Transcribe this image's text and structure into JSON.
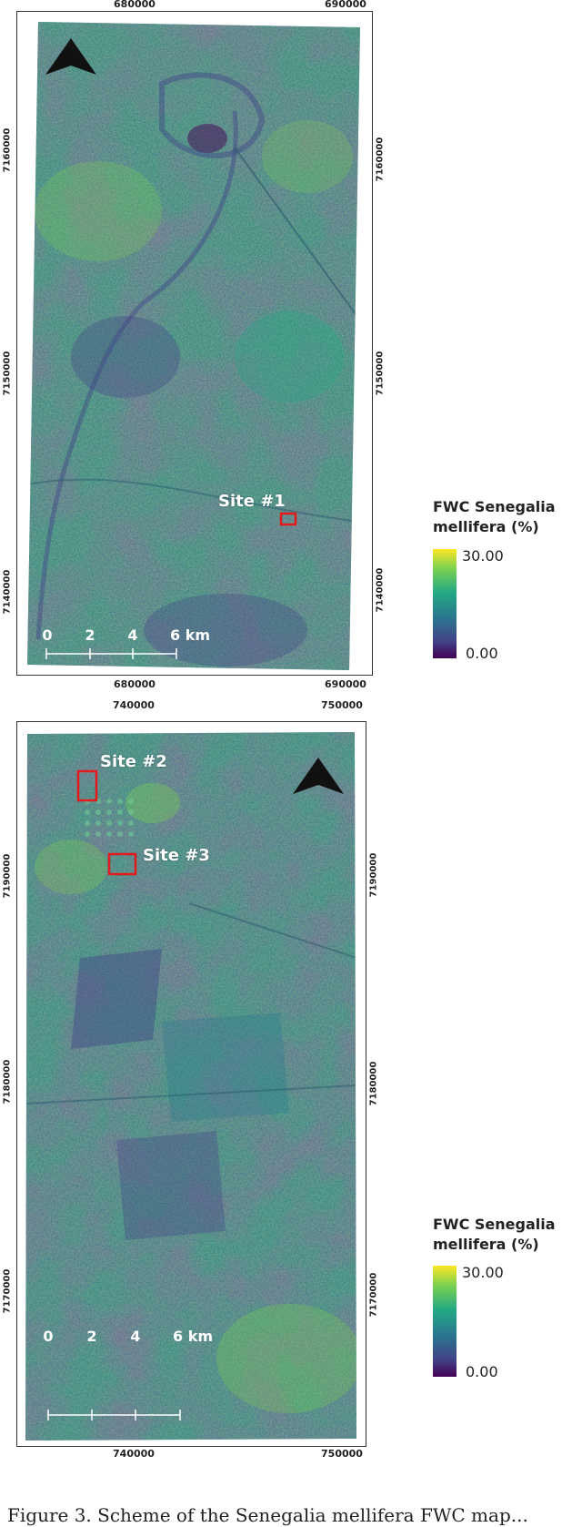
{
  "maps": [
    {
      "x_ticks": [
        "680000",
        "690000"
      ],
      "y_ticks": [
        "7160000",
        "7150000",
        "7140000"
      ],
      "sites": [
        {
          "label": "Site #1"
        }
      ],
      "scale": {
        "labels": [
          "0",
          "2",
          "4",
          "6 km"
        ]
      },
      "legend": {
        "title_line1": "FWC Senegalia",
        "title_line2": "mellifera (%)",
        "max": "30.00",
        "min": "0.00"
      },
      "north_arrow_icon": "north-arrow-icon",
      "colormap": [
        "#440154",
        "#414487",
        "#2a788e",
        "#22a884",
        "#7ad151",
        "#fde725"
      ]
    },
    {
      "x_ticks": [
        "740000",
        "750000"
      ],
      "y_ticks": [
        "7190000",
        "7180000",
        "7170000"
      ],
      "sites": [
        {
          "label": "Site #2"
        },
        {
          "label": "Site #3"
        }
      ],
      "scale": {
        "labels": [
          "0",
          "2",
          "4",
          "6 km"
        ]
      },
      "legend": {
        "title_line1": "FWC Senegalia",
        "title_line2": "mellifera (%)",
        "max": "30.00",
        "min": "0.00"
      },
      "north_arrow_icon": "north-arrow-icon",
      "colormap": [
        "#440154",
        "#414487",
        "#2a788e",
        "#22a884",
        "#7ad151",
        "#fde725"
      ]
    }
  ],
  "caption": "Figure 3. Scheme of the Senegalia mellifera FWC map..."
}
